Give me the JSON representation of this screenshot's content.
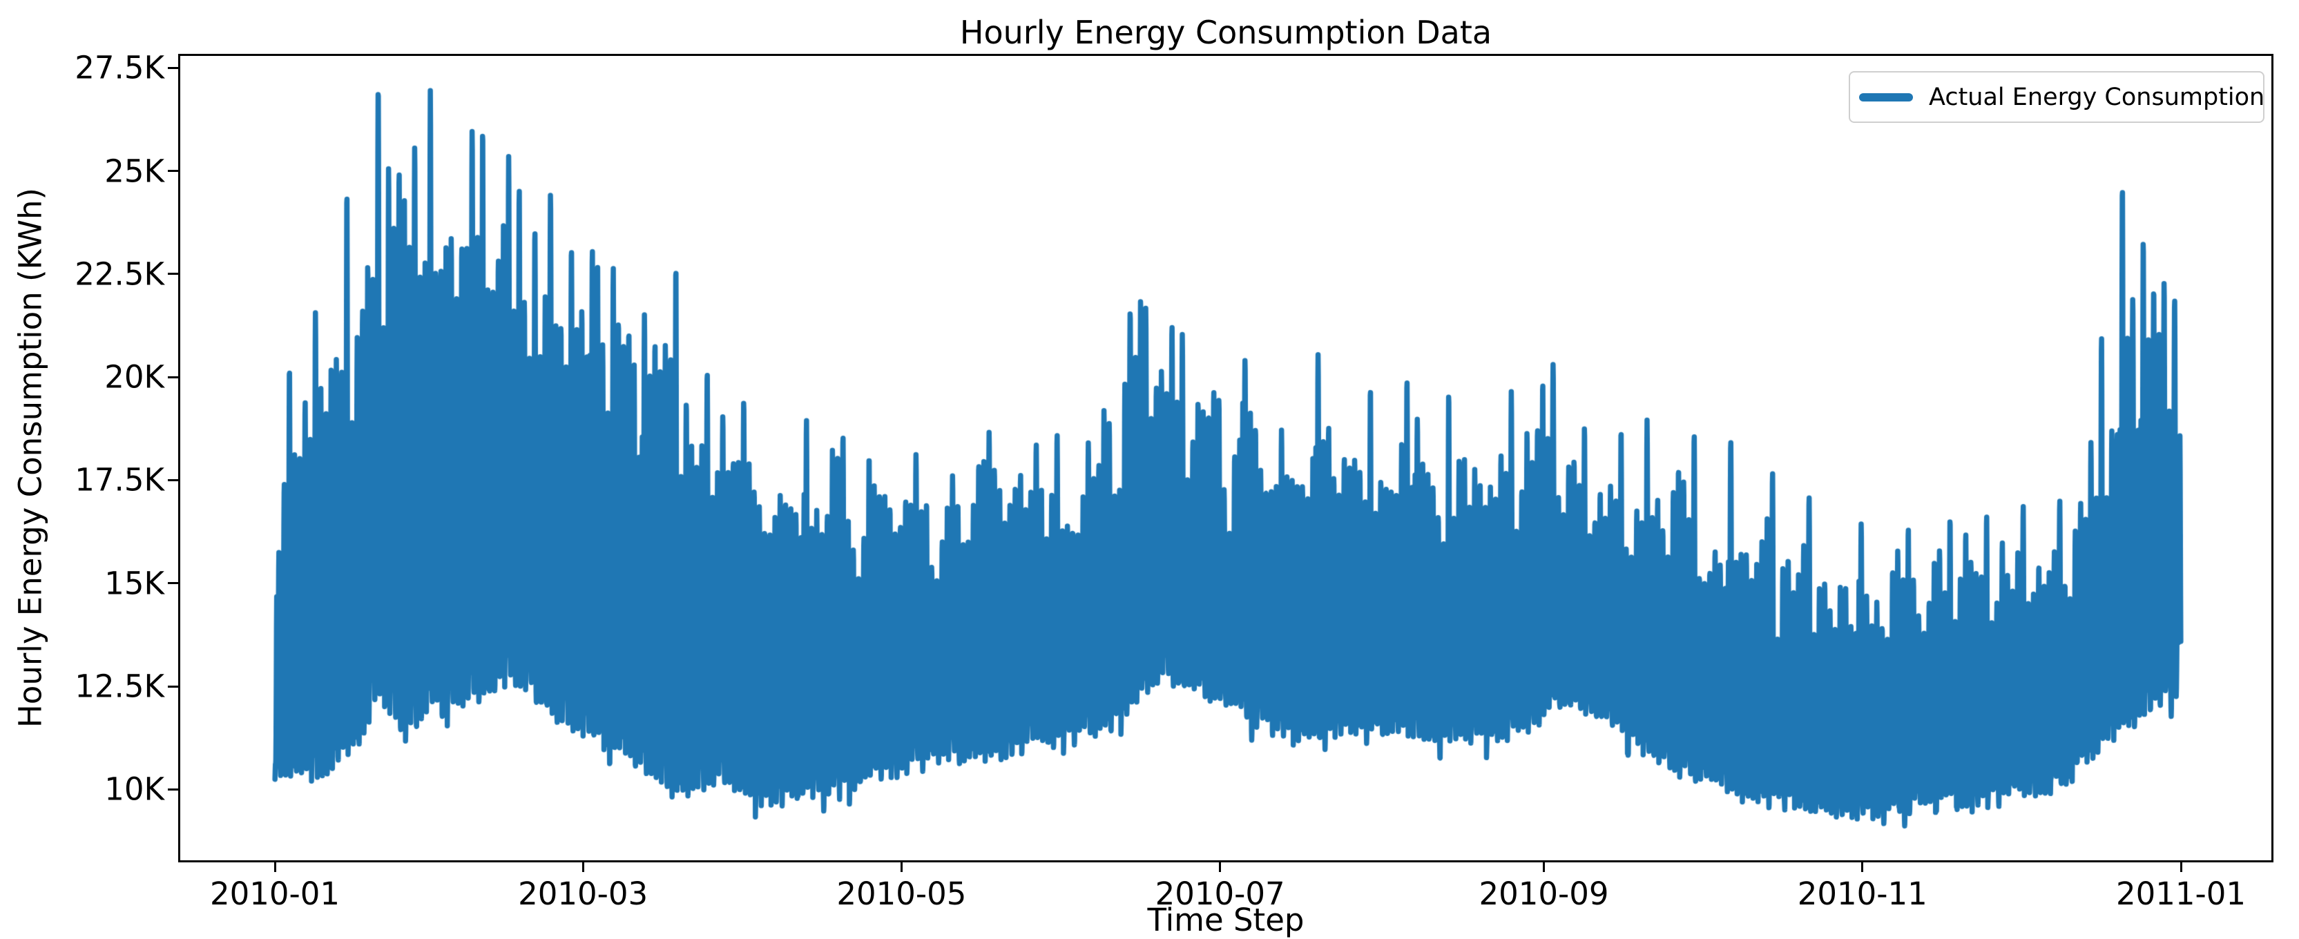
{
  "figure": {
    "title": "Hourly Energy Consumption Data",
    "xlabel": "Time Step",
    "ylabel": "Hourly Energy Consumption (KWh)",
    "legend_label": "Actual Energy Consumption",
    "line_color": "#1f77b4",
    "axis_color": "#000000",
    "legend_border_color": "#cfcfcf",
    "background_color": "#ffffff"
  },
  "chart_data": {
    "type": "line",
    "title": "Hourly Energy Consumption Data",
    "xlabel": "Time Step",
    "ylabel": "Hourly Energy Consumption (KWh)",
    "legend": [
      "Actual Energy Consumption"
    ],
    "legend_position": "upper right",
    "grid": false,
    "series_color": "#1f77b4",
    "sampling": "hourly values for one year (2010-01-01 through 2010-12-31), 8760 points; dense daily oscillation between the min and max envelopes below",
    "num_points": 8760,
    "x_start": "2010-01",
    "x_end": "2011-01",
    "x_tick_labels": [
      "2010-01",
      "2010-03",
      "2010-05",
      "2010-07",
      "2010-09",
      "2010-11",
      "2011-01"
    ],
    "x_tick_days": [
      0,
      59,
      120,
      181,
      243,
      304,
      365
    ],
    "y_tick_labels": [
      "10K",
      "12.5K",
      "15K",
      "17.5K",
      "20K",
      "22.5K",
      "25K",
      "27.5K"
    ],
    "y_tick_values": [
      10000,
      12500,
      15000,
      17500,
      20000,
      22500,
      25000,
      27500
    ],
    "ylim": [
      8280,
      27790
    ],
    "xlim_days": [
      -18.25,
      383.25
    ],
    "envelope_day_step": 5,
    "upper_envelope_kwh": [
      18500,
      20000,
      21500,
      23000,
      25500,
      26000,
      25500,
      25800,
      25000,
      24500,
      24000,
      23000,
      23000,
      22300,
      21500,
      21800,
      20000,
      19300,
      19000,
      18600,
      18700,
      18500,
      18400,
      18200,
      18000,
      18000,
      18100,
      18400,
      18400,
      18500,
      18200,
      18800,
      19600,
      21300,
      20900,
      20000,
      19700,
      20200,
      19200,
      19000,
      19800,
      19200,
      19500,
      19600,
      19300,
      19200,
      19300,
      19400,
      19600,
      19500,
      18800,
      18600,
      18900,
      18400,
      17500,
      17300,
      17100,
      16800,
      16500,
      16100,
      15800,
      15900,
      16000,
      16200,
      16400,
      16500,
      16700,
      16800,
      17000,
      17800,
      19500,
      21500,
      22500,
      21000
    ],
    "lower_envelope_kwh": [
      10400,
      10300,
      10500,
      11100,
      12200,
      11300,
      11900,
      12100,
      12300,
      12800,
      12300,
      11600,
      11300,
      10900,
      10600,
      10100,
      9900,
      10300,
      9800,
      9700,
      9900,
      9800,
      10100,
      10300,
      10500,
      10700,
      10800,
      10700,
      10900,
      11100,
      11200,
      11400,
      11600,
      12200,
      12800,
      12500,
      12200,
      11900,
      11500,
      11300,
      11400,
      11400,
      11500,
      11500,
      11300,
      11200,
      11200,
      11300,
      11500,
      12100,
      12000,
      11700,
      11200,
      10700,
      10400,
      10100,
      9900,
      9800,
      9700,
      9500,
      9400,
      9500,
      9600,
      9600,
      9700,
      9700,
      9800,
      9900,
      10100,
      10500,
      11000,
      11600,
      12100,
      12300
    ],
    "peak_days": [
      [
        2,
        20100
      ],
      [
        7,
        21600
      ],
      [
        13,
        24300
      ],
      [
        19,
        26800
      ],
      [
        21,
        25000
      ],
      [
        23,
        24900
      ],
      [
        26,
        25600
      ],
      [
        29,
        26900
      ],
      [
        33,
        23400
      ],
      [
        37,
        26000
      ],
      [
        39,
        25800
      ],
      [
        44,
        25300
      ],
      [
        46,
        24500
      ],
      [
        49,
        23500
      ],
      [
        52,
        24400
      ],
      [
        56,
        23000
      ],
      [
        60,
        23000
      ],
      [
        64,
        22600
      ],
      [
        70,
        21500
      ],
      [
        76,
        22500
      ],
      [
        82,
        20000
      ],
      [
        89,
        19400
      ],
      [
        101,
        18900
      ],
      [
        108,
        18500
      ],
      [
        122,
        18100
      ],
      [
        136,
        18700
      ],
      [
        149,
        18600
      ],
      [
        158,
        19200
      ],
      [
        163,
        21500
      ],
      [
        165,
        21800
      ],
      [
        166,
        21700
      ],
      [
        171,
        21200
      ],
      [
        173,
        21000
      ],
      [
        179,
        19600
      ],
      [
        185,
        20400
      ],
      [
        192,
        18700
      ],
      [
        199,
        20600
      ],
      [
        209,
        19600
      ],
      [
        216,
        19900
      ],
      [
        224,
        19500
      ],
      [
        236,
        19600
      ],
      [
        242,
        19800
      ],
      [
        244,
        20300
      ],
      [
        250,
        18700
      ],
      [
        257,
        18600
      ],
      [
        262,
        18900
      ],
      [
        271,
        18600
      ],
      [
        278,
        18400
      ],
      [
        286,
        17600
      ],
      [
        293,
        17100
      ],
      [
        303,
        16400
      ],
      [
        312,
        16300
      ],
      [
        320,
        16500
      ],
      [
        327,
        16600
      ],
      [
        334,
        16800
      ],
      [
        341,
        17000
      ],
      [
        347,
        18400
      ],
      [
        349,
        20900
      ],
      [
        353,
        24500
      ],
      [
        355,
        21900
      ],
      [
        357,
        23200
      ],
      [
        359,
        22000
      ],
      [
        361,
        22300
      ],
      [
        363,
        21900
      ]
    ],
    "seed": 20100101
  }
}
